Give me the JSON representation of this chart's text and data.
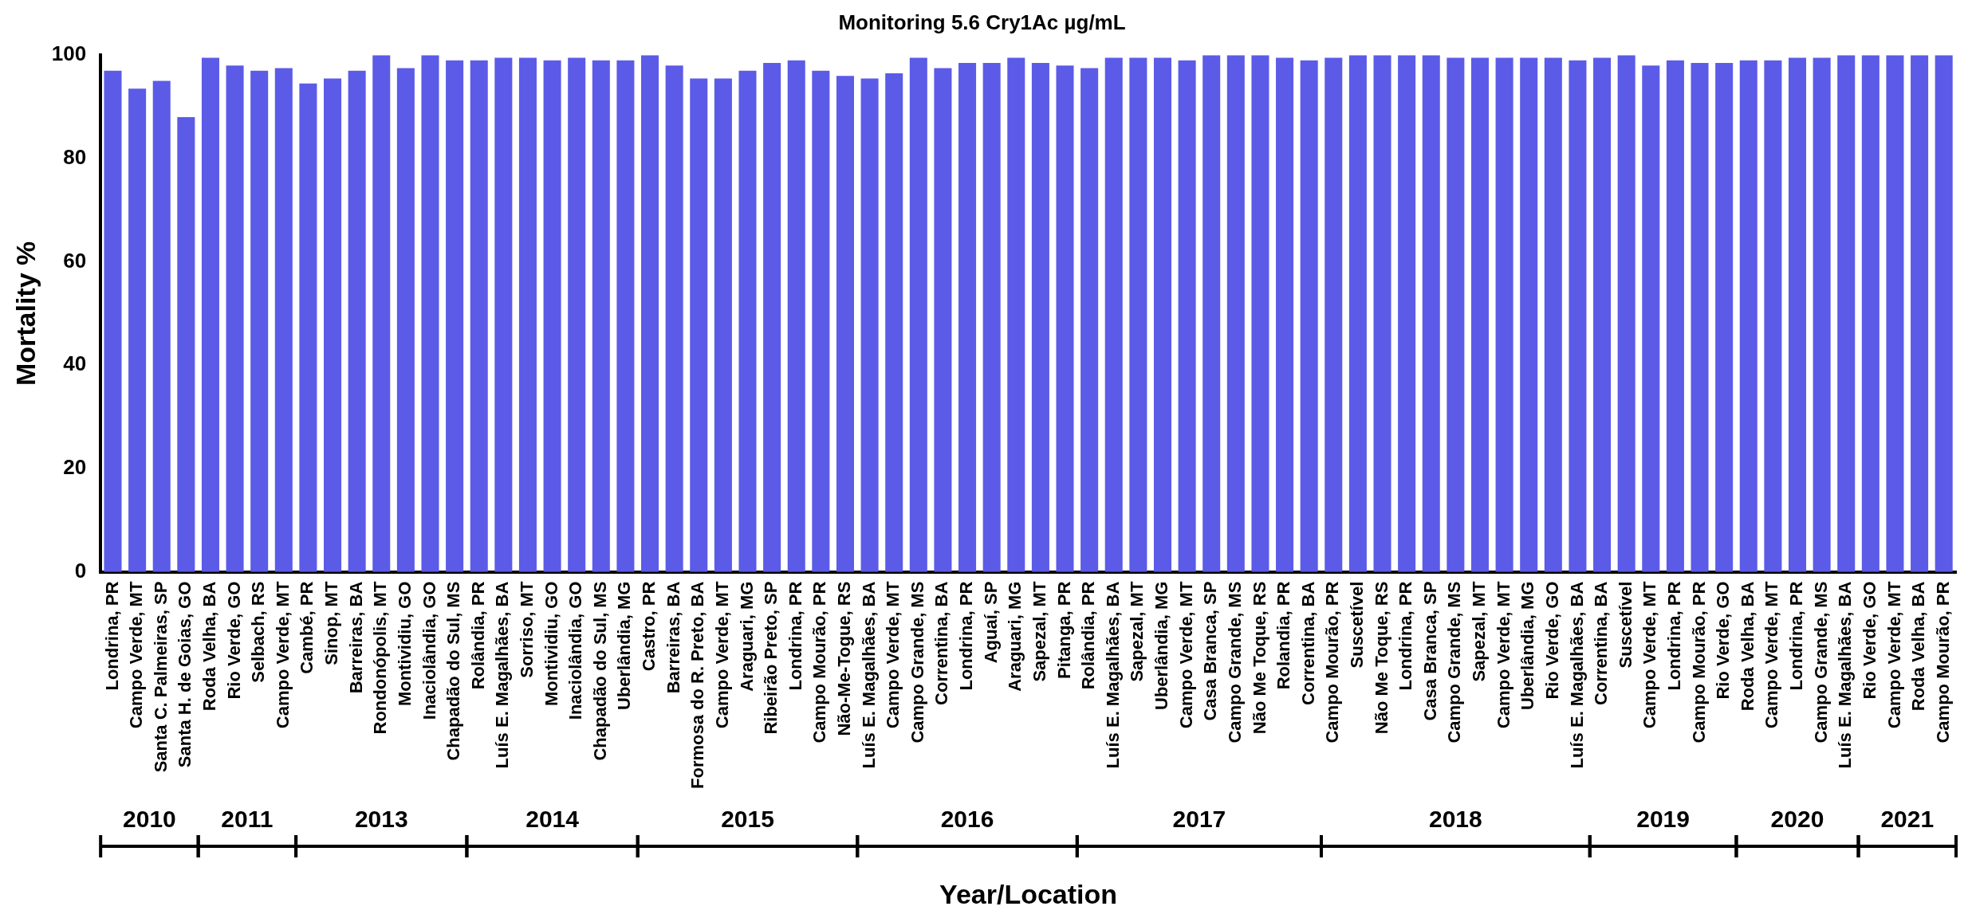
{
  "chart_data": {
    "type": "bar",
    "title": "Monitoring 5.6 Cry1Ac µg/mL",
    "ylabel": "Mortality %",
    "xlabel": "Year/Location",
    "categories": [
      "Londrina, PR",
      "Campo Verde, MT",
      "Santa C. Palmeiras, SP",
      "Santa H. de Goias, GO",
      "Roda Velha, BA",
      "Rio Verde, GO",
      "Selbach, RS",
      "Campo Verde, MT",
      "Cambé, PR",
      "Sinop, MT",
      "Barreiras, BA",
      "Rondonópolis, MT",
      "Montividiu, GO",
      "Inaciolândia, GO",
      "Chapadão do Sul, MS",
      "Rolândia, PR",
      "Luís E. Magalhães, BA",
      "Sorriso, MT",
      "Montividiu, GO",
      "Inaciolândia, GO",
      "Chapadão do Sul, MS",
      "Uberlândia, MG",
      "Castro, PR",
      "Barreiras, BA",
      "Formosa do R. Preto, BA",
      "Campo Verde, MT",
      "Araguari, MG",
      "Ribeirão Preto, SP",
      "Londrina, PR",
      "Campo Mourão, PR",
      "Não-Me-Togue, RS",
      "Luís E. Magalhães, BA",
      "Campo Verde, MT",
      "Campo Grande, MS",
      "Correntina, BA",
      "Londrina, PR",
      "Aguaí, SP",
      "Araguari, MG",
      "Sapezal, MT",
      "Pitanga, PR",
      "Rolândia, PR",
      "Luís E. Magalhães, BA",
      "Sapezal, MT",
      "Uberlândia, MG",
      "Campo Verde, MT",
      "Casa Branca, SP",
      "Campo Grande, MS",
      "Não Me Toque, RS",
      "Rolandia, PR",
      "Correntina, BA",
      "Campo Mourão, PR",
      "Suscetível",
      "Não Me Toque, RS",
      "Londrina, PR",
      "Casa Branca, SP",
      "Campo Grande, MS",
      "Sapezal, MT",
      "Campo Verde, MT",
      "Uberlândia, MG",
      "Rio Verde, GO",
      "Luís E. Magalhães, BA",
      "Correntina, BA",
      "Suscetível",
      "Campo Verde, MT",
      "Londrina, PR",
      "Campo Mourão, PR",
      "Rio Verde, GO",
      "Roda Velha, BA",
      "Campo Verde, MT",
      "Londrina, PR",
      "Campo Grande, MS",
      "Luís E. Magalhães, BA",
      "Rio Verde, GO",
      "Campo Verde, MT",
      "Roda Velha, BA",
      "Campo Mourão, PR"
    ],
    "values": [
      97,
      93.5,
      95,
      88,
      99.5,
      98,
      97,
      97.5,
      94.5,
      95.5,
      97,
      100,
      97.5,
      100,
      99,
      99,
      99.5,
      99.5,
      99,
      99.5,
      99,
      99,
      100,
      98,
      95.5,
      95.5,
      97,
      98.5,
      99,
      97,
      96,
      95.5,
      96.5,
      99.5,
      97.5,
      98.5,
      98.5,
      99.5,
      98.5,
      98,
      97.5,
      99.5,
      99.5,
      99.5,
      99,
      100,
      100,
      100,
      99.5,
      99,
      99.5,
      100,
      100,
      100,
      100,
      99.5,
      99.5,
      99.5,
      99.5,
      99.5,
      99,
      99.5,
      100,
      98,
      99,
      98.5,
      98.5,
      99,
      99,
      99.5,
      99.5,
      100,
      100,
      100,
      100,
      100
    ],
    "color": "#5b5be8",
    "ylim": [
      0,
      100
    ],
    "yticks": [
      0,
      20,
      40,
      60,
      80,
      100
    ],
    "grid": false,
    "legend": false,
    "annotations": [
      "2010",
      "2011",
      "2013",
      "2014",
      "2015",
      "2016",
      "2017",
      "2018",
      "2019",
      "2020",
      "2021"
    ]
  }
}
